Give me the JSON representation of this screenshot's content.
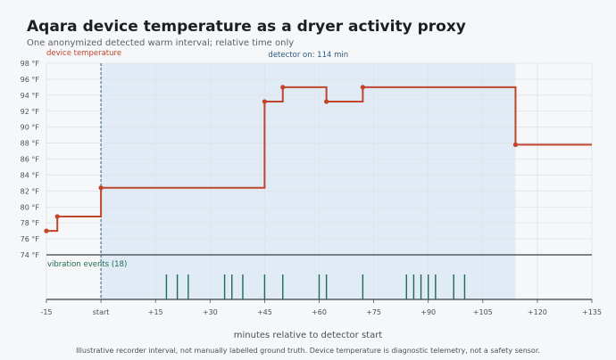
{
  "header": {
    "title": "Aqara device temperature as a dryer activity proxy",
    "subtitle": "One anonymized detected warm interval; relative time only"
  },
  "footnote": "Illustrative recorder interval, not manually labelled ground truth. Device temperature is diagnostic telemetry, not a safety sensor.",
  "colors": {
    "temperature_line": "#c0452a",
    "detector_band": "#dce9f5",
    "vibration_tick": "#1f6b50",
    "detector_start_line": "#2c5a80"
  },
  "chart_data": {
    "type": "line",
    "xlabel": "minutes relative to detector start",
    "xlim": [
      -15,
      135
    ],
    "x_ticks": [
      -15,
      0,
      15,
      30,
      45,
      60,
      75,
      90,
      105,
      120,
      135
    ],
    "x_tick_labels": [
      "-15",
      "start",
      "+15",
      "+30",
      "+45",
      "+60",
      "+75",
      "+90",
      "+105",
      "+120",
      "+135"
    ],
    "ylim": [
      74,
      98
    ],
    "y_ticks": [
      74,
      76,
      78,
      80,
      82,
      84,
      86,
      88,
      90,
      92,
      94,
      96,
      98
    ],
    "y_tick_labels": [
      "74 °F",
      "76 °F",
      "78 °F",
      "80 °F",
      "82 °F",
      "84 °F",
      "86 °F",
      "88 °F",
      "90 °F",
      "92 °F",
      "94 °F",
      "96 °F",
      "98 °F"
    ],
    "grid": true,
    "series": [
      {
        "name": "device temperature",
        "step": "post",
        "points": [
          {
            "x": -15,
            "y": 77.0
          },
          {
            "x": -12,
            "y": 78.8
          },
          {
            "x": 0,
            "y": 82.4
          },
          {
            "x": 45,
            "y": 93.2
          },
          {
            "x": 50,
            "y": 95.0
          },
          {
            "x": 62,
            "y": 93.2
          },
          {
            "x": 72,
            "y": 95.0
          },
          {
            "x": 114,
            "y": 87.8
          },
          {
            "x": 135,
            "y": 87.8
          }
        ]
      }
    ],
    "detector_interval": {
      "label": "detector on: 114 min",
      "start": 0,
      "end": 114
    },
    "vibration_events": {
      "label": "vibration events (18)",
      "x": [
        18,
        21,
        24,
        34,
        36,
        39,
        45,
        50,
        60,
        62,
        72,
        84,
        86,
        88,
        90,
        92,
        97,
        100
      ]
    }
  }
}
